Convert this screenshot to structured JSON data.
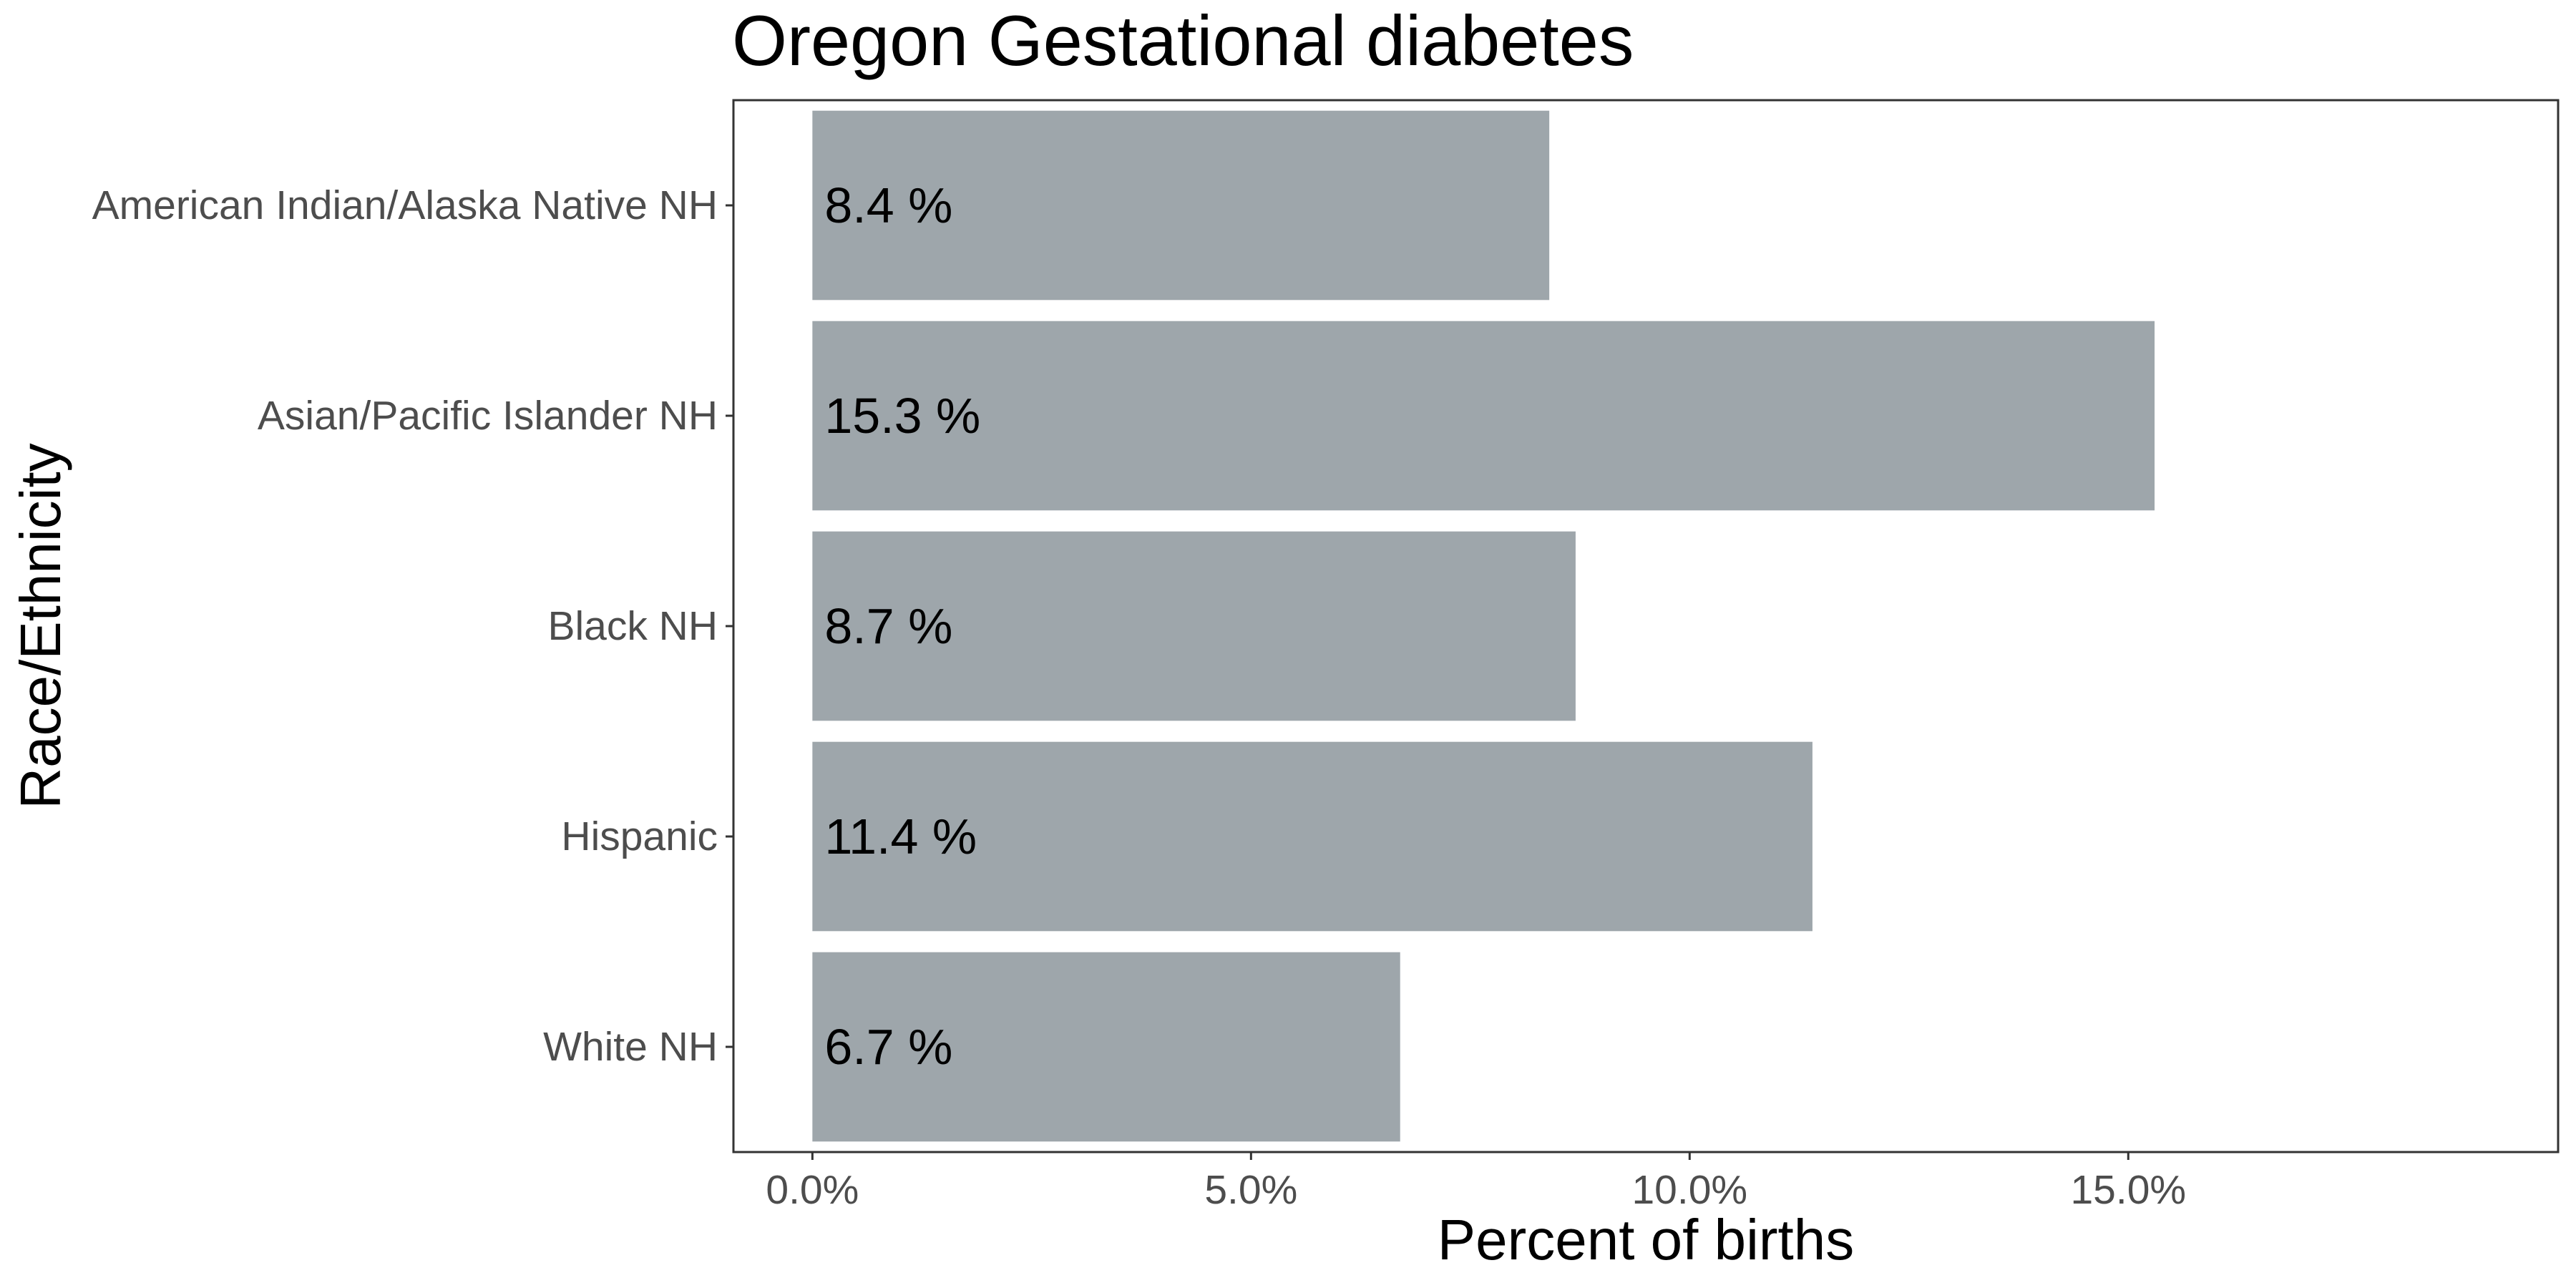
{
  "chart_data": {
    "type": "bar",
    "orientation": "horizontal",
    "title": "Oregon Gestational diabetes",
    "xlabel": "Percent of births",
    "ylabel": "Race/Ethnicity",
    "categories": [
      "American Indian/Alaska Native NH",
      "Asian/Pacific Islander NH",
      "Black NH",
      "Hispanic",
      "White NH"
    ],
    "values": [
      8.4,
      15.3,
      8.7,
      11.4,
      6.7
    ],
    "data_labels": [
      "8.4 %",
      "15.3 %",
      "8.7 %",
      "11.4 %",
      "6.7 %"
    ],
    "x_ticks": [
      0,
      5,
      10,
      15
    ],
    "x_tick_labels": [
      "0.0%",
      "5.0%",
      "10.0%",
      "15.0%"
    ],
    "xlim": [
      -0.9,
      19.9
    ],
    "grid": false,
    "legend": "none",
    "colors": {
      "bar": "#9ea6ab",
      "panel_border": "#333333",
      "tick": "#333333",
      "tick_label": "#4d4d4d",
      "text": "#000000"
    }
  }
}
